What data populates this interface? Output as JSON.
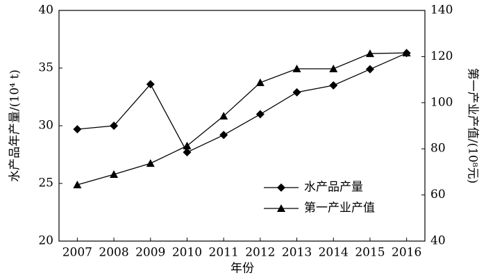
{
  "chart_data": {
    "type": "line",
    "x_label": "年份",
    "y_label": "水产品年产量/(10⁴ t)",
    "y2_label": "第一产业产值/(10⁸元)",
    "categories": [
      "2007",
      "2008",
      "2009",
      "2010",
      "2011",
      "2012",
      "2013",
      "2014",
      "2015",
      "2016"
    ],
    "series": [
      {
        "name": "水产品产量",
        "color": "#000000",
        "marker": "diamond",
        "values": [
          29.7,
          30.0,
          33.6,
          27.7,
          29.2,
          31.0,
          32.9,
          33.5,
          34.9,
          36.3
        ]
      },
      {
        "name": "第一产业产值",
        "color": "#000000",
        "marker": "triangle",
        "axis": "y2",
        "values": [
          64.4,
          68.9,
          73.7,
          81.3,
          94.2,
          108.7,
          114.7,
          114.7,
          121.3,
          121.6
        ]
      }
    ],
    "ylim": [
      20,
      40
    ],
    "yticks": [
      20,
      25,
      30,
      35,
      40
    ],
    "y2lim": [
      40,
      140
    ],
    "y2ticks": [
      40,
      60,
      80,
      100,
      120,
      140
    ],
    "legend": "lower right"
  }
}
